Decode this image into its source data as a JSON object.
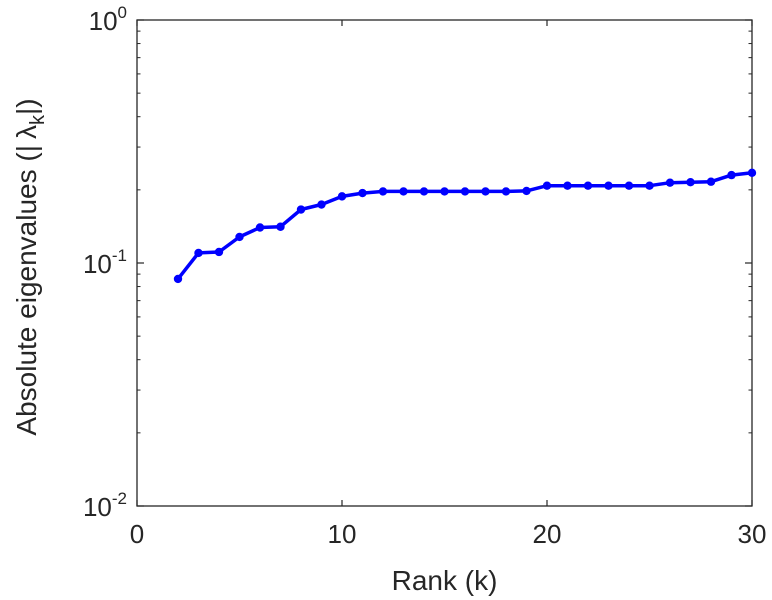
{
  "chart_data": {
    "type": "line",
    "title": "",
    "xlabel": "Rank (k)",
    "ylabel": {
      "prefix": "Absolute eigenvalues (|",
      "symbol": "λ",
      "subscript": "k",
      "suffix": "|)"
    },
    "x_scale": "linear",
    "y_scale": "log",
    "xlim": [
      0,
      30
    ],
    "ylim": [
      0.01,
      1
    ],
    "x_ticks": [
      {
        "value": 0,
        "label": "0"
      },
      {
        "value": 10,
        "label": "10"
      },
      {
        "value": 20,
        "label": "20"
      },
      {
        "value": 30,
        "label": "30"
      }
    ],
    "y_ticks": [
      {
        "value": 0.01,
        "base": "10",
        "exp": "-2"
      },
      {
        "value": 0.1,
        "base": "10",
        "exp": "-1"
      },
      {
        "value": 1,
        "base": "10",
        "exp": "0"
      }
    ],
    "grid": false,
    "legend": "none",
    "line_color": "#0000ff",
    "series": [
      {
        "x": [
          2,
          3,
          4,
          5,
          6,
          7,
          8,
          9,
          10,
          11,
          12,
          13,
          14,
          15,
          16,
          17,
          18,
          19,
          20,
          21,
          22,
          23,
          24,
          25,
          26,
          27,
          28,
          29,
          30
        ],
        "y": [
          0.086,
          0.11,
          0.111,
          0.128,
          0.14,
          0.141,
          0.166,
          0.174,
          0.188,
          0.194,
          0.197,
          0.197,
          0.197,
          0.197,
          0.197,
          0.197,
          0.197,
          0.198,
          0.208,
          0.208,
          0.208,
          0.208,
          0.208,
          0.208,
          0.214,
          0.215,
          0.216,
          0.23,
          0.235
        ]
      }
    ]
  }
}
